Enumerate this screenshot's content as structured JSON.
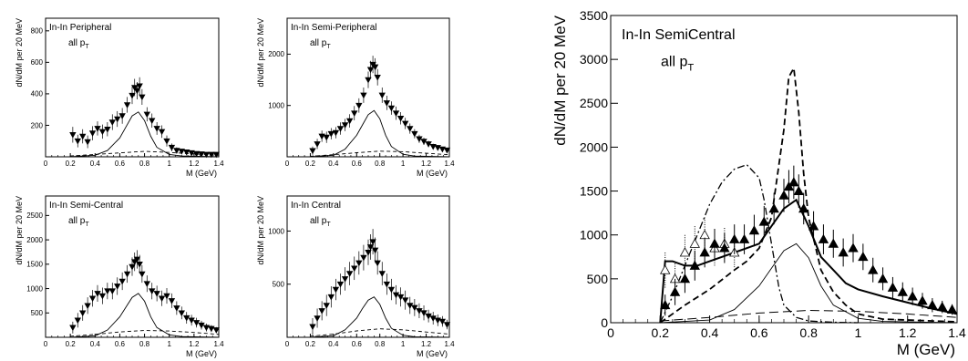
{
  "chart_data": [
    {
      "type": "scatter",
      "panel_title": "In-In Peripheral",
      "panel_subtitle": "all p",
      "panel_subtitle_sub": "T",
      "xlabel": "M (GeV)",
      "ylabel": "dN/dM per 20 MeV",
      "xlim": [
        0,
        1.4
      ],
      "ylim": [
        0,
        880
      ],
      "xticks": [
        0,
        0.2,
        0.4,
        0.6,
        0.8,
        1,
        1.2,
        1.4
      ],
      "xtick_labels": [
        "0",
        "0.2",
        "0.4",
        "0.6",
        "0.8",
        "1",
        "1.2",
        "1.4"
      ],
      "yticks": [
        200,
        400,
        600,
        800
      ],
      "ytick_labels": [
        "200",
        "400",
        "600",
        "800"
      ],
      "data": {
        "x": [
          0.22,
          0.26,
          0.3,
          0.34,
          0.38,
          0.42,
          0.46,
          0.5,
          0.54,
          0.58,
          0.62,
          0.66,
          0.7,
          0.72,
          0.74,
          0.76,
          0.78,
          0.82,
          0.86,
          0.9,
          0.94,
          0.98,
          1.02,
          1.06,
          1.1,
          1.14,
          1.18,
          1.22,
          1.26,
          1.3,
          1.34,
          1.38
        ],
        "y": [
          140,
          100,
          130,
          95,
          150,
          180,
          160,
          175,
          220,
          240,
          260,
          330,
          390,
          440,
          420,
          450,
          380,
          270,
          230,
          180,
          160,
          100,
          60,
          40,
          35,
          30,
          25,
          20,
          18,
          15,
          15,
          15
        ],
        "err": [
          50,
          40,
          45,
          40,
          45,
          45,
          45,
          45,
          50,
          50,
          50,
          50,
          55,
          55,
          55,
          55,
          50,
          45,
          45,
          40,
          40,
          35,
          25,
          20,
          15,
          15,
          12,
          12,
          10,
          10,
          10,
          10
        ]
      },
      "rho_curve": {
        "x": [
          0.2,
          0.4,
          0.5,
          0.6,
          0.65,
          0.7,
          0.75,
          0.8,
          0.85,
          0.9,
          1.0,
          1.1,
          1.4
        ],
        "y": [
          0,
          10,
          40,
          120,
          190,
          260,
          285,
          230,
          130,
          60,
          15,
          5,
          0
        ]
      },
      "dashed_curve": {
        "x": [
          0.2,
          0.4,
          0.6,
          0.8,
          1.0,
          1.2,
          1.4
        ],
        "y": [
          5,
          15,
          25,
          35,
          28,
          18,
          10
        ]
      }
    },
    {
      "type": "scatter",
      "panel_title": "In-In Semi-Peripheral",
      "panel_subtitle": "all p",
      "panel_subtitle_sub": "T",
      "xlabel": "M (GeV)",
      "ylabel": "dN/dM per 20 MeV",
      "xlim": [
        0,
        1.4
      ],
      "ylim": [
        0,
        2700
      ],
      "xticks": [
        0,
        0.2,
        0.4,
        0.6,
        0.8,
        1,
        1.2,
        1.4
      ],
      "xtick_labels": [
        "0",
        "0.2",
        "0.4",
        "0.6",
        "0.8",
        "1",
        "1.2",
        "1.4"
      ],
      "yticks": [
        1000,
        2000
      ],
      "ytick_labels": [
        "1000",
        "2000"
      ],
      "data": {
        "x": [
          0.22,
          0.26,
          0.3,
          0.34,
          0.38,
          0.42,
          0.46,
          0.5,
          0.54,
          0.58,
          0.62,
          0.66,
          0.7,
          0.72,
          0.74,
          0.76,
          0.78,
          0.82,
          0.86,
          0.9,
          0.94,
          0.98,
          1.02,
          1.06,
          1.1,
          1.14,
          1.18,
          1.22,
          1.26,
          1.3,
          1.34,
          1.38
        ],
        "y": [
          120,
          250,
          400,
          380,
          450,
          470,
          550,
          620,
          700,
          850,
          1000,
          1200,
          1500,
          1700,
          1800,
          1750,
          1550,
          1200,
          1050,
          950,
          850,
          750,
          650,
          550,
          450,
          350,
          300,
          250,
          200,
          180,
          150,
          130
        ],
        "err": [
          80,
          100,
          110,
          110,
          110,
          110,
          120,
          120,
          130,
          140,
          140,
          150,
          160,
          170,
          170,
          170,
          160,
          150,
          140,
          130,
          130,
          120,
          110,
          100,
          90,
          80,
          70,
          60,
          55,
          50,
          45,
          40
        ]
      },
      "rho_curve": {
        "x": [
          0.2,
          0.4,
          0.5,
          0.6,
          0.65,
          0.7,
          0.75,
          0.8,
          0.85,
          0.9,
          1.0,
          1.1,
          1.4
        ],
        "y": [
          0,
          30,
          150,
          420,
          620,
          820,
          900,
          740,
          420,
          200,
          50,
          15,
          0
        ]
      },
      "dashed_curve": {
        "x": [
          0.2,
          0.4,
          0.6,
          0.8,
          1.0,
          1.2,
          1.4
        ],
        "y": [
          10,
          40,
          80,
          110,
          100,
          70,
          40
        ]
      }
    },
    {
      "type": "scatter",
      "panel_title": "In-In Semi-Central",
      "panel_subtitle": "all p",
      "panel_subtitle_sub": "T",
      "xlabel": "M (GeV)",
      "ylabel": "dN/dM per 20 MeV",
      "xlim": [
        0,
        1.4
      ],
      "ylim": [
        0,
        2900
      ],
      "xticks": [
        0,
        0.2,
        0.4,
        0.6,
        0.8,
        1,
        1.2,
        1.4
      ],
      "xtick_labels": [
        "0",
        "0.2",
        "0.4",
        "0.6",
        "0.8",
        "1",
        "1.2",
        "1.4"
      ],
      "yticks": [
        500,
        1000,
        1500,
        2000,
        2500
      ],
      "ytick_labels": [
        "500",
        "1000",
        "1500",
        "2000",
        "2500"
      ],
      "data": {
        "x": [
          0.22,
          0.26,
          0.3,
          0.34,
          0.38,
          0.42,
          0.46,
          0.5,
          0.54,
          0.58,
          0.62,
          0.66,
          0.7,
          0.72,
          0.74,
          0.76,
          0.78,
          0.82,
          0.86,
          0.9,
          0.94,
          0.98,
          1.02,
          1.06,
          1.1,
          1.14,
          1.18,
          1.22,
          1.26,
          1.3,
          1.34,
          1.38
        ],
        "y": [
          200,
          350,
          500,
          650,
          800,
          900,
          850,
          950,
          950,
          1050,
          1150,
          1300,
          1450,
          1550,
          1600,
          1500,
          1300,
          1100,
          950,
          900,
          800,
          850,
          750,
          600,
          500,
          400,
          350,
          300,
          250,
          200,
          180,
          150
        ],
        "err": [
          120,
          150,
          160,
          170,
          170,
          170,
          170,
          170,
          170,
          180,
          180,
          180,
          190,
          190,
          190,
          190,
          180,
          170,
          170,
          160,
          160,
          160,
          150,
          140,
          130,
          120,
          110,
          100,
          90,
          80,
          70,
          60
        ]
      },
      "rho_curve": {
        "x": [
          0.2,
          0.4,
          0.5,
          0.6,
          0.65,
          0.7,
          0.75,
          0.8,
          0.85,
          0.9,
          1.0,
          1.1,
          1.4
        ],
        "y": [
          0,
          30,
          150,
          420,
          620,
          820,
          900,
          740,
          420,
          200,
          50,
          15,
          0
        ]
      },
      "dashed_curve": {
        "x": [
          0.2,
          0.4,
          0.6,
          0.8,
          1.0,
          1.2,
          1.4
        ],
        "y": [
          20,
          60,
          110,
          140,
          130,
          100,
          60
        ]
      }
    },
    {
      "type": "scatter",
      "panel_title": "In-In Central",
      "panel_subtitle": "all p",
      "panel_subtitle_sub": "T",
      "xlabel": "M (GeV)",
      "ylabel": "dN/dM per 20 MeV",
      "xlim": [
        0,
        1.4
      ],
      "ylim": [
        0,
        1330
      ],
      "xticks": [
        0,
        0.2,
        0.4,
        0.6,
        0.8,
        1,
        1.2,
        1.4
      ],
      "xtick_labels": [
        "0",
        "0.2",
        "0.4",
        "0.6",
        "0.8",
        "1",
        "1.2",
        "1.4"
      ],
      "yticks": [
        500,
        1000
      ],
      "ytick_labels": [
        "500",
        "1000"
      ],
      "data": {
        "x": [
          0.22,
          0.26,
          0.3,
          0.34,
          0.38,
          0.42,
          0.46,
          0.5,
          0.54,
          0.58,
          0.62,
          0.66,
          0.7,
          0.72,
          0.74,
          0.76,
          0.78,
          0.82,
          0.86,
          0.9,
          0.94,
          0.98,
          1.02,
          1.06,
          1.1,
          1.14,
          1.18,
          1.22,
          1.26,
          1.3,
          1.34,
          1.38
        ],
        "y": [
          100,
          180,
          250,
          300,
          380,
          450,
          500,
          550,
          600,
          650,
          700,
          750,
          800,
          850,
          900,
          820,
          700,
          600,
          500,
          450,
          400,
          380,
          350,
          300,
          280,
          250,
          230,
          200,
          180,
          160,
          150,
          120
        ],
        "err": [
          80,
          90,
          90,
          100,
          100,
          100,
          100,
          110,
          110,
          110,
          110,
          120,
          120,
          120,
          120,
          120,
          110,
          110,
          100,
          100,
          90,
          90,
          90,
          80,
          80,
          70,
          70,
          60,
          60,
          55,
          50,
          45
        ]
      },
      "rho_curve": {
        "x": [
          0.2,
          0.4,
          0.5,
          0.6,
          0.65,
          0.7,
          0.75,
          0.8,
          0.85,
          0.9,
          1.0,
          1.1,
          1.4
        ],
        "y": [
          0,
          15,
          70,
          180,
          270,
          350,
          380,
          310,
          180,
          85,
          20,
          5,
          0
        ]
      },
      "dashed_curve": {
        "x": [
          0.2,
          0.4,
          0.6,
          0.8,
          1.0,
          1.2,
          1.4
        ],
        "y": [
          10,
          30,
          60,
          80,
          70,
          50,
          30
        ]
      }
    },
    {
      "type": "scatter",
      "panel_title": "In-In SemiCentral",
      "panel_subtitle": "all p",
      "panel_subtitle_sub": "T",
      "xlabel": "M (GeV)",
      "ylabel": "dN/dM per 20 MeV",
      "xlim": [
        0,
        1.4
      ],
      "ylim": [
        0,
        3500
      ],
      "xticks": [
        0,
        0.2,
        0.4,
        0.6,
        0.8,
        1,
        1.2,
        1.4
      ],
      "xtick_labels": [
        "0",
        "0.2",
        "0.4",
        "0.6",
        "0.8",
        "1",
        "1.2",
        "1.4"
      ],
      "yticks": [
        0,
        500,
        1000,
        1500,
        2000,
        2500,
        3000,
        3500
      ],
      "ytick_labels": [
        "0",
        "500",
        "1000",
        "1500",
        "2000",
        "2500",
        "3000",
        "3500"
      ],
      "filled_points": {
        "x": [
          0.22,
          0.26,
          0.3,
          0.34,
          0.38,
          0.42,
          0.46,
          0.5,
          0.54,
          0.58,
          0.62,
          0.66,
          0.7,
          0.72,
          0.74,
          0.76,
          0.78,
          0.82,
          0.86,
          0.9,
          0.94,
          0.98,
          1.02,
          1.06,
          1.1,
          1.14,
          1.18,
          1.22,
          1.26,
          1.3,
          1.34,
          1.38
        ],
        "y": [
          200,
          350,
          500,
          650,
          800,
          900,
          850,
          950,
          950,
          1050,
          1150,
          1300,
          1450,
          1550,
          1600,
          1500,
          1300,
          1100,
          950,
          900,
          800,
          850,
          750,
          600,
          500,
          400,
          350,
          300,
          250,
          200,
          180,
          150
        ],
        "err": [
          120,
          150,
          160,
          170,
          170,
          170,
          170,
          170,
          170,
          180,
          180,
          180,
          190,
          190,
          190,
          190,
          180,
          170,
          170,
          160,
          160,
          160,
          150,
          140,
          130,
          120,
          110,
          100,
          90,
          80,
          70,
          60
        ]
      },
      "open_points": {
        "x": [
          0.22,
          0.26,
          0.3,
          0.34,
          0.38,
          0.42,
          0.46,
          0.5
        ],
        "y": [
          600,
          500,
          800,
          900,
          1000,
          850,
          900,
          800
        ],
        "err": [
          200,
          200,
          200,
          200,
          200,
          200,
          180,
          180
        ]
      },
      "curves": {
        "thick_solid": {
          "x": [
            0.2,
            0.22,
            0.25,
            0.3,
            0.35,
            0.4,
            0.45,
            0.5,
            0.55,
            0.6,
            0.65,
            0.7,
            0.75,
            0.8,
            0.85,
            0.9,
            0.95,
            1.0,
            1.1,
            1.2,
            1.3,
            1.4
          ],
          "y": [
            0,
            700,
            700,
            650,
            650,
            700,
            750,
            800,
            850,
            900,
            1100,
            1300,
            1400,
            1100,
            750,
            600,
            450,
            380,
            300,
            230,
            160,
            100
          ]
        },
        "thin_solid": {
          "x": [
            0.2,
            0.4,
            0.5,
            0.6,
            0.65,
            0.7,
            0.75,
            0.8,
            0.85,
            0.9,
            1.0,
            1.1,
            1.4
          ],
          "y": [
            0,
            30,
            150,
            420,
            620,
            820,
            900,
            740,
            420,
            200,
            50,
            15,
            0
          ]
        },
        "dashed": {
          "x": [
            0.2,
            0.3,
            0.4,
            0.5,
            0.55,
            0.6,
            0.65,
            0.7,
            0.72,
            0.74,
            0.76,
            0.78,
            0.8,
            0.85,
            0.9,
            0.95,
            1.0,
            1.1,
            1.4
          ],
          "y": [
            0,
            200,
            380,
            600,
            700,
            850,
            1200,
            2200,
            2800,
            2900,
            2400,
            1700,
            1200,
            600,
            350,
            200,
            100,
            40,
            10
          ]
        },
        "dash_dot": {
          "x": [
            0.2,
            0.25,
            0.3,
            0.35,
            0.4,
            0.45,
            0.5,
            0.55,
            0.6,
            0.62,
            0.65,
            0.68,
            0.7,
            0.75,
            0.8,
            0.9,
            1.0
          ],
          "y": [
            0,
            300,
            650,
            1000,
            1350,
            1600,
            1750,
            1800,
            1650,
            1400,
            900,
            400,
            200,
            60,
            20,
            5,
            0
          ]
        },
        "long_dashed": {
          "x": [
            0.2,
            0.4,
            0.6,
            0.8,
            1.0,
            1.2,
            1.4
          ],
          "y": [
            20,
            60,
            110,
            140,
            130,
            100,
            60
          ]
        }
      }
    }
  ]
}
